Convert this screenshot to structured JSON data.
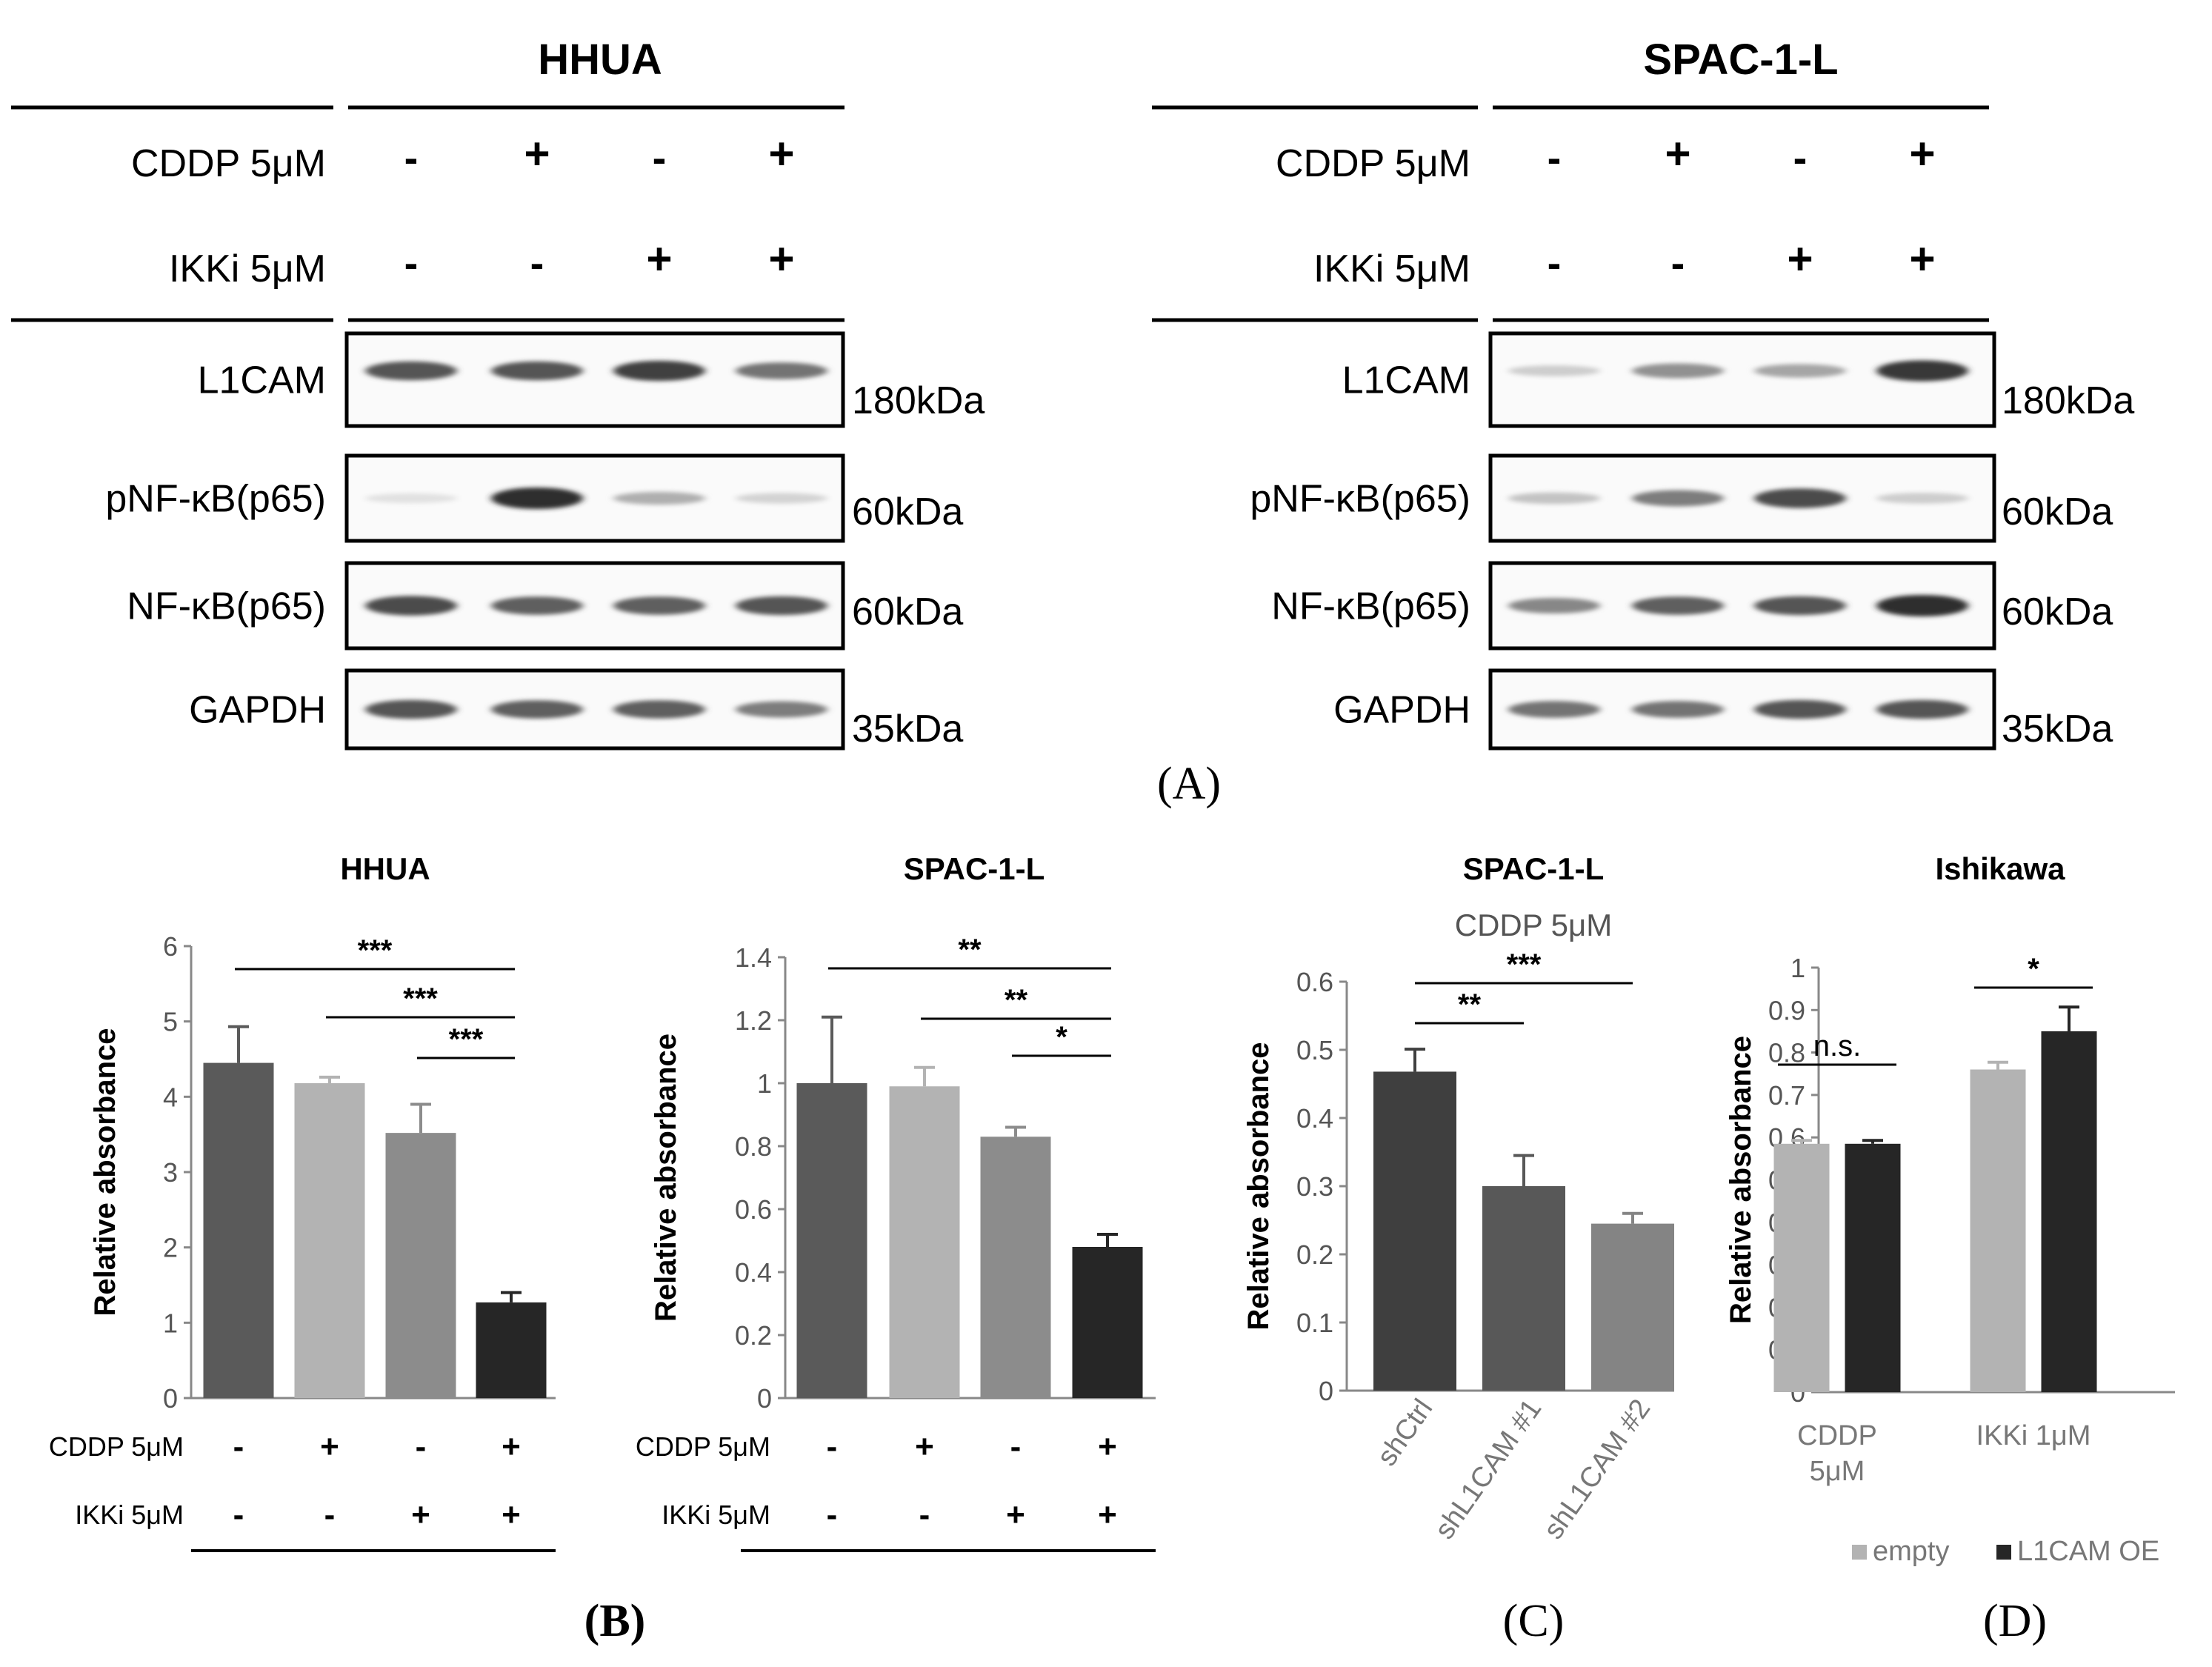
{
  "panel_labels": {
    "A": "(A)",
    "B": "(B)",
    "C": "(C)",
    "D": "(D)"
  },
  "colors": {
    "bar_dark": "#5a5a5a",
    "bar_light": "#b3b3b3",
    "bar_mid": "#8c8c8c",
    "bar_black": "#262626",
    "bar_darkgray": "#3f3f3f",
    "bar_midgray": "#585858",
    "bar_lightgray": "#848484",
    "empty": "#b3b3b3",
    "l1cam_oe": "#262626"
  },
  "blots": [
    {
      "cell_line": "HHUA",
      "treatments": [
        {
          "label": "CDDP 5μM",
          "signs": [
            "-",
            "+",
            "-",
            "+"
          ]
        },
        {
          "label": "IKKi 5μM",
          "signs": [
            "-",
            "-",
            "+",
            "+"
          ]
        }
      ],
      "rows": [
        {
          "protein": "L1CAM",
          "marker": "180kDa",
          "intensities": [
            0.75,
            0.75,
            0.85,
            0.6
          ]
        },
        {
          "protein": "pNF-κB(p65)",
          "marker": "60kDa",
          "intensities": [
            0.05,
            0.95,
            0.3,
            0.12
          ]
        },
        {
          "protein": "NF-κB(p65)",
          "marker": "60kDa",
          "intensities": [
            0.8,
            0.7,
            0.7,
            0.75
          ]
        },
        {
          "protein": "GAPDH",
          "marker": "35kDa",
          "intensities": [
            0.75,
            0.7,
            0.7,
            0.55
          ]
        }
      ]
    },
    {
      "cell_line": "SPAC-1-L",
      "treatments": [
        {
          "label": "CDDP 5μM",
          "signs": [
            "-",
            "+",
            "-",
            "+"
          ]
        },
        {
          "label": "IKKi 5μM",
          "signs": [
            "-",
            "-",
            "+",
            "+"
          ]
        }
      ],
      "rows": [
        {
          "protein": "L1CAM",
          "marker": "180kDa",
          "intensities": [
            0.15,
            0.45,
            0.35,
            0.9
          ]
        },
        {
          "protein": "pNF-κB(p65)",
          "marker": "60kDa",
          "intensities": [
            0.2,
            0.55,
            0.8,
            0.15
          ]
        },
        {
          "protein": "NF-κB(p65)",
          "marker": "60kDa",
          "intensities": [
            0.5,
            0.7,
            0.75,
            0.95
          ]
        },
        {
          "protein": "GAPDH",
          "marker": "35kDa",
          "intensities": [
            0.6,
            0.6,
            0.75,
            0.75
          ]
        }
      ]
    }
  ],
  "chart_data": [
    {
      "panel": "B",
      "type": "bar",
      "title": "HHUA",
      "ylabel": "Relative absorbance",
      "ylim": [
        0,
        6
      ],
      "yticks": [
        "0",
        "1",
        "2",
        "3",
        "4",
        "5",
        "6"
      ],
      "values": [
        4.45,
        4.18,
        3.52,
        1.27
      ],
      "errors": [
        0.48,
        0.08,
        0.38,
        0.13
      ],
      "bar_colors": [
        "#5a5a5a",
        "#b3b3b3",
        "#8c8c8c",
        "#262626"
      ],
      "conditions": [
        {
          "label": "CDDP 5μM",
          "signs": [
            "-",
            "+",
            "-",
            "+"
          ]
        },
        {
          "label": "IKKi 5μM",
          "signs": [
            "-",
            "-",
            "+",
            "+"
          ]
        }
      ],
      "significance": [
        {
          "from": 0,
          "to": 3,
          "label": "***"
        },
        {
          "from": 1,
          "to": 3,
          "label": "***"
        },
        {
          "from": 2,
          "to": 3,
          "label": "***"
        }
      ]
    },
    {
      "panel": "B",
      "type": "bar",
      "title": "SPAC-1-L",
      "ylabel": "Relative absorbance",
      "ylim": [
        0,
        1.4
      ],
      "yticks": [
        "0",
        "0.2",
        "0.4",
        "0.6",
        "0.8",
        "1",
        "1.2",
        "1.4"
      ],
      "values": [
        1.0,
        0.99,
        0.83,
        0.48
      ],
      "errors": [
        0.21,
        0.06,
        0.03,
        0.04
      ],
      "bar_colors": [
        "#5a5a5a",
        "#b3b3b3",
        "#8c8c8c",
        "#262626"
      ],
      "conditions": [
        {
          "label": "CDDP 5μM",
          "signs": [
            "-",
            "+",
            "-",
            "+"
          ]
        },
        {
          "label": "IKKi 5μM",
          "signs": [
            "-",
            "-",
            "+",
            "+"
          ]
        }
      ],
      "significance": [
        {
          "from": 0,
          "to": 3,
          "label": "**"
        },
        {
          "from": 1,
          "to": 3,
          "label": "**"
        },
        {
          "from": 2,
          "to": 3,
          "label": "*"
        }
      ]
    },
    {
      "panel": "C",
      "type": "bar",
      "title": "SPAC-1-L",
      "subtitle": "CDDP 5μM",
      "ylabel": "Relative absorbance",
      "ylim": [
        0,
        0.6
      ],
      "yticks": [
        "0",
        "0.1",
        "0.2",
        "0.3",
        "0.4",
        "0.5",
        "0.6"
      ],
      "categories": [
        "shCtrl",
        "shL1CAM #1",
        "shL1CAM #2"
      ],
      "values": [
        0.468,
        0.3,
        0.245
      ],
      "errors": [
        0.033,
        0.045,
        0.015
      ],
      "bar_colors": [
        "#3f3f3f",
        "#585858",
        "#848484"
      ],
      "significance": [
        {
          "from": 0,
          "to": 2,
          "label": "***"
        },
        {
          "from": 0,
          "to": 1,
          "label": "**"
        }
      ]
    },
    {
      "panel": "D",
      "type": "bar",
      "title": "Ishikawa",
      "ylabel": "Relative absorbance",
      "ylim": [
        0,
        1
      ],
      "yticks": [
        "0",
        "0.1",
        "0.2",
        "0.3",
        "0.4",
        "0.5",
        "0.6",
        "0.7",
        "0.8",
        "0.9",
        "1"
      ],
      "categories": [
        "CDDP 5μM",
        "IKKi 1μM"
      ],
      "series": [
        {
          "name": "empty",
          "color": "#b3b3b3",
          "values": [
            0.585,
            0.76
          ],
          "errors": [
            0.008,
            0.017
          ]
        },
        {
          "name": "L1CAM OE",
          "color": "#262626",
          "values": [
            0.585,
            0.85
          ],
          "errors": [
            0.008,
            0.057
          ]
        }
      ],
      "legend": "bottom",
      "significance": [
        {
          "group": 0,
          "label": "n.s."
        },
        {
          "group": 1,
          "label": "*"
        }
      ]
    }
  ]
}
